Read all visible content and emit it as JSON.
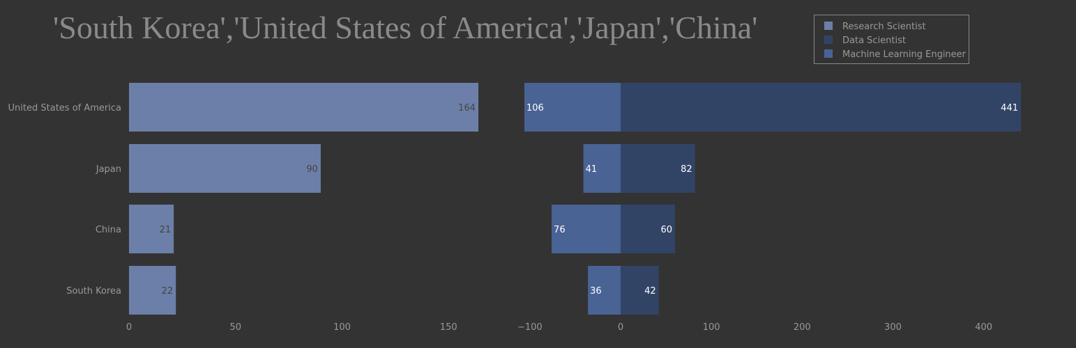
{
  "chart_data": {
    "type": "bar",
    "title": "'South Korea','United States of America','Japan','China'",
    "categories": [
      "United States of America",
      "Japan",
      "China",
      "South Korea"
    ],
    "legend": {
      "placement": "top-right",
      "entries": [
        "Research Scientist",
        "Data Scientist",
        "Machine Learning Engineer"
      ]
    },
    "colors": {
      "background": "#333333",
      "research_scientist": "#6c7fa8",
      "data_scientist": "#324466",
      "machine_learning_engineer": "#4a6395",
      "text": "#999999",
      "light_label": "#ffffff",
      "dark_label": "#444444"
    },
    "panels": [
      {
        "orientation": "h",
        "xlim": [
          0,
          164
        ],
        "xticks": [
          0,
          50,
          100,
          150
        ],
        "xtick_labels": [
          "0",
          "50",
          "100",
          "150"
        ],
        "series": [
          {
            "name": "Research Scientist",
            "values": [
              164,
              90,
              21,
              22
            ],
            "labels": [
              "164",
              "90",
              "21",
              "22"
            ]
          }
        ]
      },
      {
        "orientation": "h",
        "barmode": "relative",
        "xlim": [
          -106,
          441
        ],
        "xticks": [
          -100,
          0,
          100,
          200,
          300,
          400
        ],
        "xtick_labels": [
          "−100",
          "0",
          "100",
          "200",
          "300",
          "400"
        ],
        "series": [
          {
            "name": "Data Scientist",
            "values": [
              441,
              82,
              60,
              42
            ],
            "labels": [
              "441",
              "82",
              "60",
              "42"
            ]
          },
          {
            "name": "Machine Learning Engineer",
            "values": [
              -106,
              -41,
              -76,
              -36
            ],
            "labels": [
              "106",
              "41",
              "76",
              "36"
            ]
          }
        ]
      }
    ]
  }
}
